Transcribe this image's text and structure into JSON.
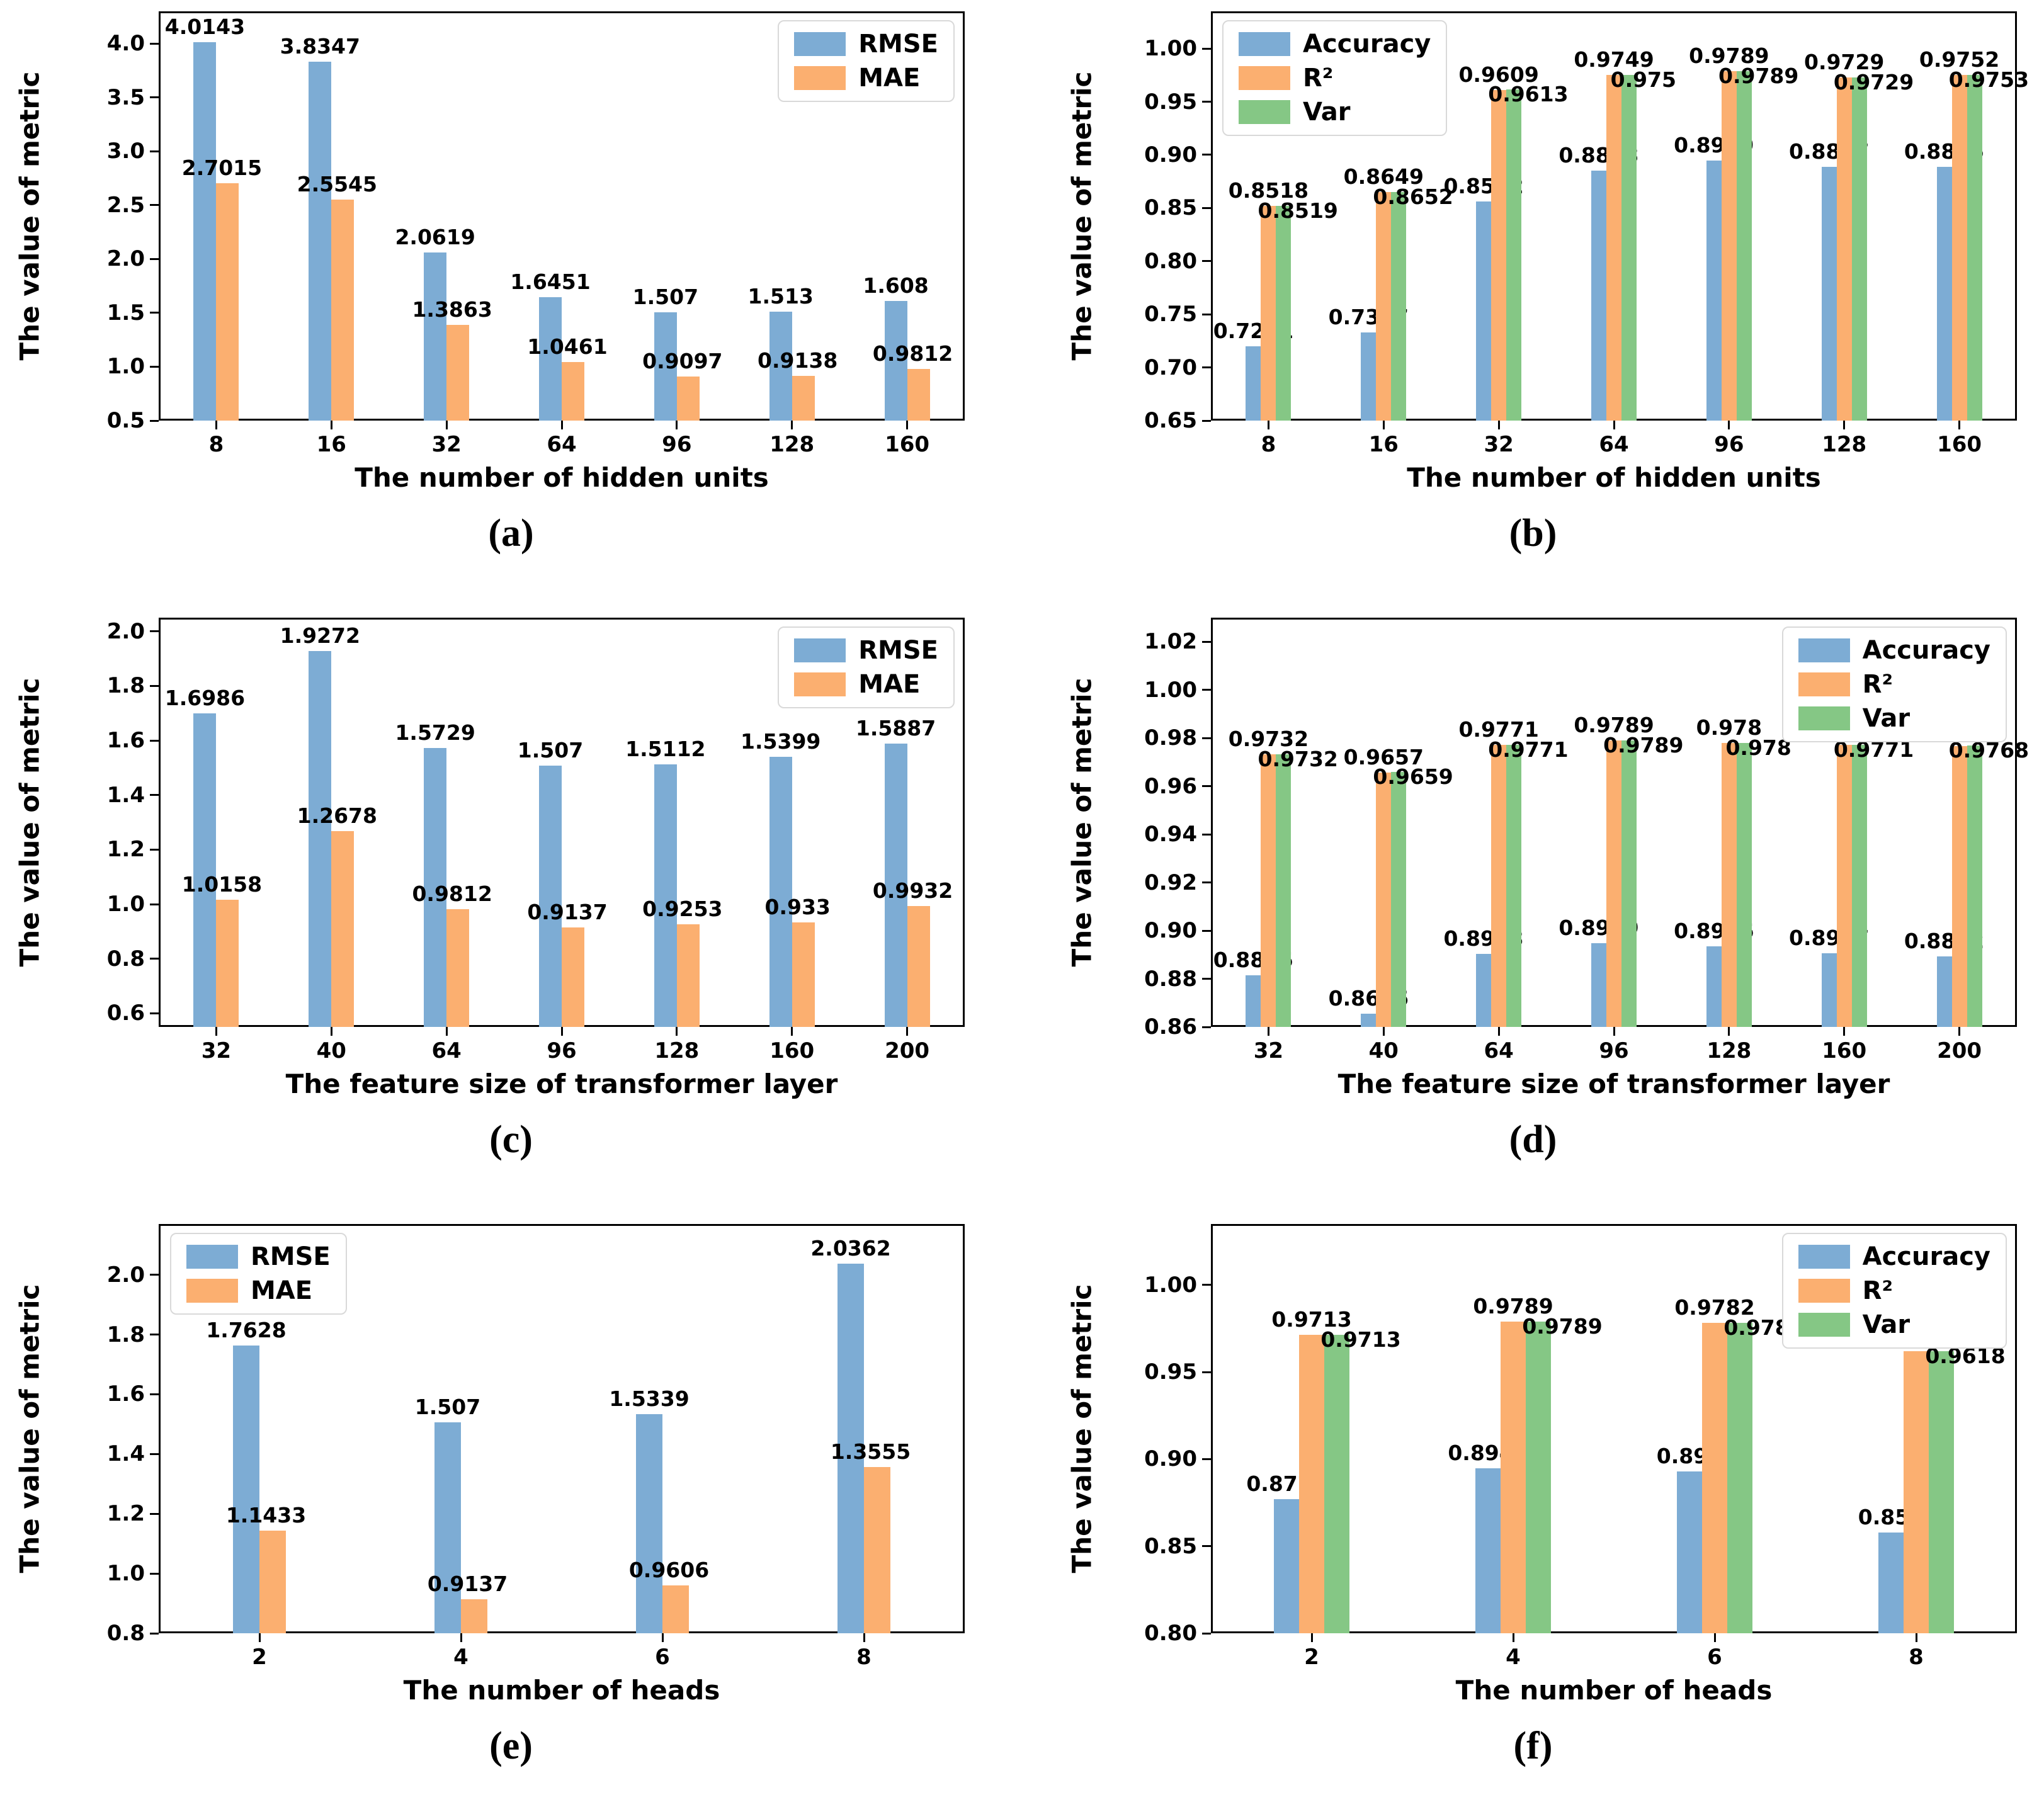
{
  "page": {
    "background": "#ffffff"
  },
  "colors": {
    "blue": "#7dacd4",
    "orange": "#fbaf70",
    "green": "#85c785",
    "axis": "#000000",
    "legend_border": "#d9d9d9",
    "text": "#000000"
  },
  "chart_data": [
    {
      "id": "a",
      "type": "bar",
      "caption": "(a)",
      "xlabel": "The number of hidden units",
      "ylabel": "The value of metric",
      "categories": [
        "8",
        "16",
        "32",
        "64",
        "96",
        "128",
        "160"
      ],
      "series": [
        {
          "name": "RMSE",
          "color_key": "blue",
          "values": [
            4.0143,
            3.8347,
            2.0619,
            1.6451,
            1.507,
            1.513,
            1.608
          ],
          "labels": [
            "4.0143",
            "3.8347",
            "2.0619",
            "1.6451",
            "1.507",
            "1.513",
            "1.608"
          ]
        },
        {
          "name": "MAE",
          "color_key": "orange",
          "values": [
            2.7015,
            2.5545,
            1.3863,
            1.0461,
            0.9097,
            0.9138,
            0.9812
          ],
          "labels": [
            "2.7015",
            "2.5545",
            "1.3863",
            "1.0461",
            "0.9097",
            "0.9138",
            "0.9812"
          ]
        }
      ],
      "ylim": [
        0.5,
        4.3
      ],
      "ytick_values": [
        4.0,
        3.5,
        3.0,
        2.5,
        2.0,
        1.5,
        1.0,
        0.5
      ],
      "ytick_labels": [
        "4.0",
        "3.5",
        "3.0",
        "2.5",
        "2.0",
        "1.5",
        "1.0",
        "0.5"
      ],
      "grid": false,
      "legend": {
        "position": "top-right",
        "entries": [
          "RMSE",
          "MAE"
        ]
      }
    },
    {
      "id": "b",
      "type": "bar",
      "caption": "(b)",
      "xlabel": "The number of hidden units",
      "ylabel": "The value of metric",
      "categories": [
        "8",
        "16",
        "32",
        "64",
        "96",
        "128",
        "160"
      ],
      "series": [
        {
          "name": "Accuracy",
          "color_key": "blue",
          "values": [
            0.7201,
            0.7327,
            0.8562,
            0.8853,
            0.8949,
            0.8887,
            0.8885
          ],
          "labels": [
            "0.7201",
            "0.7327",
            "0.8562",
            "0.8853",
            "0.8949",
            "0.8887",
            "0.8885"
          ]
        },
        {
          "name": "R²",
          "color_key": "orange",
          "values": [
            0.8518,
            0.8649,
            0.9609,
            0.9749,
            0.9789,
            0.9729,
            0.9752
          ],
          "labels": [
            "0.8518",
            "0.8649",
            "0.9609",
            "0.9749",
            "0.9789",
            "0.9729",
            "0.9752"
          ]
        },
        {
          "name": "Var",
          "color_key": "green",
          "values": [
            0.8519,
            0.8652,
            0.9613,
            0.975,
            0.9789,
            0.9729,
            0.9753
          ],
          "labels": [
            "0.8519",
            "0.8652",
            "0.9613",
            "0.975",
            "0.9789",
            "0.9729",
            "0.9753"
          ]
        }
      ],
      "ylim": [
        0.65,
        1.035
      ],
      "ytick_values": [
        1.0,
        0.95,
        0.9,
        0.85,
        0.8,
        0.75,
        0.7,
        0.65
      ],
      "ytick_labels": [
        "1.00",
        "0.95",
        "0.90",
        "0.85",
        "0.80",
        "0.75",
        "0.70",
        "0.65"
      ],
      "grid": false,
      "legend": {
        "position": "top-left",
        "entries": [
          "Accuracy",
          "R²",
          "Var"
        ]
      }
    },
    {
      "id": "c",
      "type": "bar",
      "caption": "(c)",
      "xlabel": "The feature size of transformer layer",
      "ylabel": "The value of metric",
      "categories": [
        "32",
        "40",
        "64",
        "96",
        "128",
        "160",
        "200"
      ],
      "series": [
        {
          "name": "RMSE",
          "color_key": "blue",
          "values": [
            1.6986,
            1.9272,
            1.5729,
            1.507,
            1.5112,
            1.5399,
            1.5887
          ],
          "labels": [
            "1.6986",
            "1.9272",
            "1.5729",
            "1.507",
            "1.5112",
            "1.5399",
            "1.5887"
          ]
        },
        {
          "name": "MAE",
          "color_key": "orange",
          "values": [
            1.0158,
            1.2678,
            0.9812,
            0.9137,
            0.9253,
            0.933,
            0.9932
          ],
          "labels": [
            "1.0158",
            "1.2678",
            "0.9812",
            "0.9137",
            "0.9253",
            "0.933",
            "0.9932"
          ]
        }
      ],
      "ylim": [
        0.55,
        2.05
      ],
      "ytick_values": [
        2.0,
        1.8,
        1.6,
        1.4,
        1.2,
        1.0,
        0.8,
        0.6
      ],
      "ytick_labels": [
        "2.0",
        "1.8",
        "1.6",
        "1.4",
        "1.2",
        "1.0",
        "0.8",
        "0.6"
      ],
      "grid": false,
      "legend": {
        "position": "top-right",
        "entries": [
          "RMSE",
          "MAE"
        ]
      }
    },
    {
      "id": "d",
      "type": "bar",
      "caption": "(d)",
      "xlabel": "The feature size of transformer layer",
      "ylabel": "The value of metric",
      "categories": [
        "32",
        "40",
        "64",
        "96",
        "128",
        "160",
        "200"
      ],
      "series": [
        {
          "name": "Accuracy",
          "color_key": "blue",
          "values": [
            0.8815,
            0.8656,
            0.8903,
            0.8949,
            0.8936,
            0.8907,
            0.8892
          ],
          "labels": [
            "0.8815",
            "0.8656",
            "0.8903",
            "0.8949",
            "0.8936",
            "0.8907",
            "0.8892"
          ]
        },
        {
          "name": "R²",
          "color_key": "orange",
          "values": [
            0.9732,
            0.9657,
            0.9771,
            0.9789,
            0.978,
            0.9773,
            0.9766
          ],
          "labels": [
            "0.9732",
            "0.9657",
            "0.9771",
            "0.9789",
            "0.978",
            "0.9773",
            "0.9766"
          ]
        },
        {
          "name": "Var",
          "color_key": "green",
          "values": [
            0.9732,
            0.9659,
            0.9771,
            0.9789,
            0.978,
            0.9771,
            0.9768
          ],
          "labels": [
            "0.9732",
            "0.9659",
            "0.9771",
            "0.9789",
            "0.978",
            "0.9771",
            "0.9768"
          ]
        }
      ],
      "ylim": [
        0.86,
        1.03
      ],
      "ytick_values": [
        1.02,
        1.0,
        0.98,
        0.96,
        0.94,
        0.92,
        0.9,
        0.88,
        0.86
      ],
      "ytick_labels": [
        "1.02",
        "1.00",
        "0.98",
        "0.96",
        "0.94",
        "0.92",
        "0.90",
        "0.88",
        "0.86"
      ],
      "grid": false,
      "legend": {
        "position": "top-right",
        "entries": [
          "Accuracy",
          "R²",
          "Var"
        ]
      }
    },
    {
      "id": "e",
      "type": "bar",
      "caption": "(e)",
      "xlabel": "The number of heads",
      "ylabel": "The value of metric",
      "categories": [
        "2",
        "4",
        "6",
        "8"
      ],
      "series": [
        {
          "name": "RMSE",
          "color_key": "blue",
          "values": [
            1.7628,
            1.507,
            1.5339,
            2.0362
          ],
          "labels": [
            "1.7628",
            "1.507",
            "1.5339",
            "2.0362"
          ]
        },
        {
          "name": "MAE",
          "color_key": "orange",
          "values": [
            1.1433,
            0.9137,
            0.9606,
            1.3555
          ],
          "labels": [
            "1.1433",
            "0.9137",
            "0.9606",
            "1.3555"
          ]
        }
      ],
      "ylim": [
        0.8,
        2.17
      ],
      "ytick_values": [
        2.0,
        1.8,
        1.6,
        1.4,
        1.2,
        1.0,
        0.8
      ],
      "ytick_labels": [
        "2.0",
        "1.8",
        "1.6",
        "1.4",
        "1.2",
        "1.0",
        "0.8"
      ],
      "grid": false,
      "legend": {
        "position": "top-left",
        "entries": [
          "RMSE",
          "MAE"
        ]
      }
    },
    {
      "id": "f",
      "type": "bar",
      "caption": "(f)",
      "xlabel": "The number of heads",
      "ylabel": "The value of metric",
      "categories": [
        "2",
        "4",
        "6",
        "8"
      ],
      "series": [
        {
          "name": "Accuracy",
          "color_key": "blue",
          "values": [
            0.8771,
            0.8949,
            0.893,
            0.858
          ],
          "labels": [
            "0.8771",
            "0.8949",
            "0.893",
            "0.858"
          ]
        },
        {
          "name": "R²",
          "color_key": "orange",
          "values": [
            0.9713,
            0.9789,
            0.9782,
            0.9618
          ],
          "labels": [
            "0.9713",
            "0.9789",
            "0.9782",
            "0.9618"
          ]
        },
        {
          "name": "Var",
          "color_key": "green",
          "values": [
            0.9713,
            0.9789,
            0.9783,
            0.9618
          ],
          "labels": [
            "0.9713",
            "0.9789",
            "0.9783",
            "0.9618"
          ]
        }
      ],
      "ylim": [
        0.8,
        1.035
      ],
      "ytick_values": [
        1.0,
        0.95,
        0.9,
        0.85,
        0.8
      ],
      "ytick_labels": [
        "1.00",
        "0.95",
        "0.90",
        "0.85",
        "0.80"
      ],
      "grid": false,
      "legend": {
        "position": "top-right",
        "entries": [
          "Accuracy",
          "R²",
          "Var"
        ]
      }
    }
  ]
}
